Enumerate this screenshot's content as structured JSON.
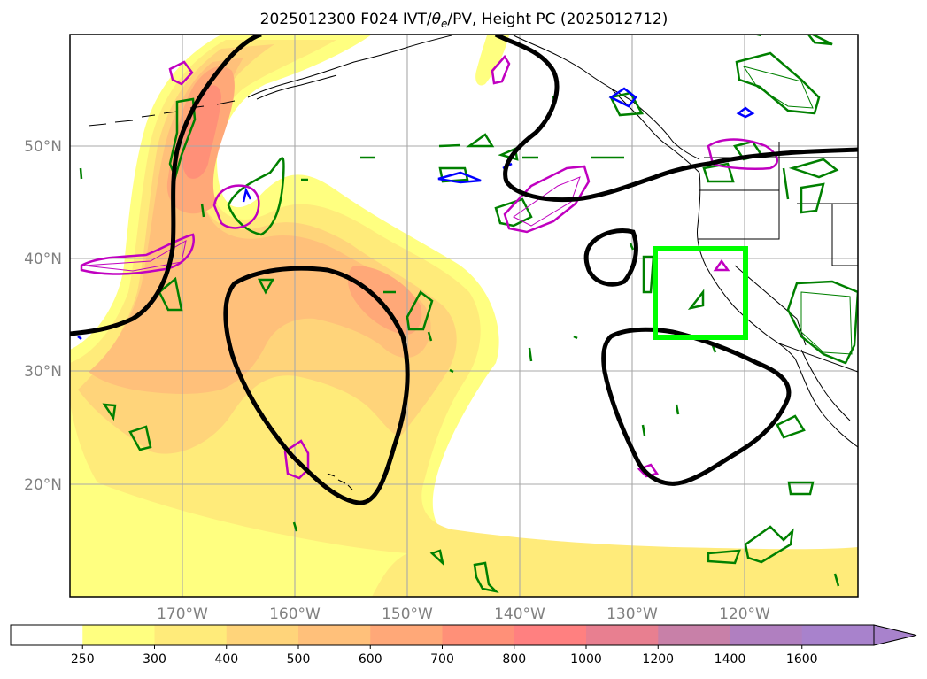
{
  "title": "2025012300 F024 IVT/θe/PV, Height PC (2025012712)",
  "title_parts": {
    "pre": "2025012300 F024 IVT/",
    "theta": "θ",
    "sub": "e",
    "post": "/PV, Height PC (2025012712)"
  },
  "map": {
    "lat_labels": [
      "50°N",
      "40°N",
      "30°N",
      "20°N"
    ],
    "lon_labels": [
      "170°W",
      "160°W",
      "150°W",
      "140°W",
      "130°W",
      "120°W"
    ],
    "grid": true,
    "highlight_box_color": "#00ff00",
    "height_contour_color": "#000000",
    "theta_e_contour_color": "#008000",
    "pv_contour_color": "#c000c0",
    "blue_contour_color": "#0000ff"
  },
  "colorbar": {
    "ticks": [
      "250",
      "300",
      "400",
      "500",
      "600",
      "700",
      "800",
      "1000",
      "1200",
      "1400",
      "1600"
    ],
    "colors": [
      "#ffffff",
      "#ffff80",
      "#ffeb7a",
      "#ffd47a",
      "#ffc07a",
      "#ffa878",
      "#ff9078",
      "#ff8080",
      "#e87f90",
      "#c880a8",
      "#b07fc0",
      "#a882cc"
    ],
    "extend": "max"
  }
}
